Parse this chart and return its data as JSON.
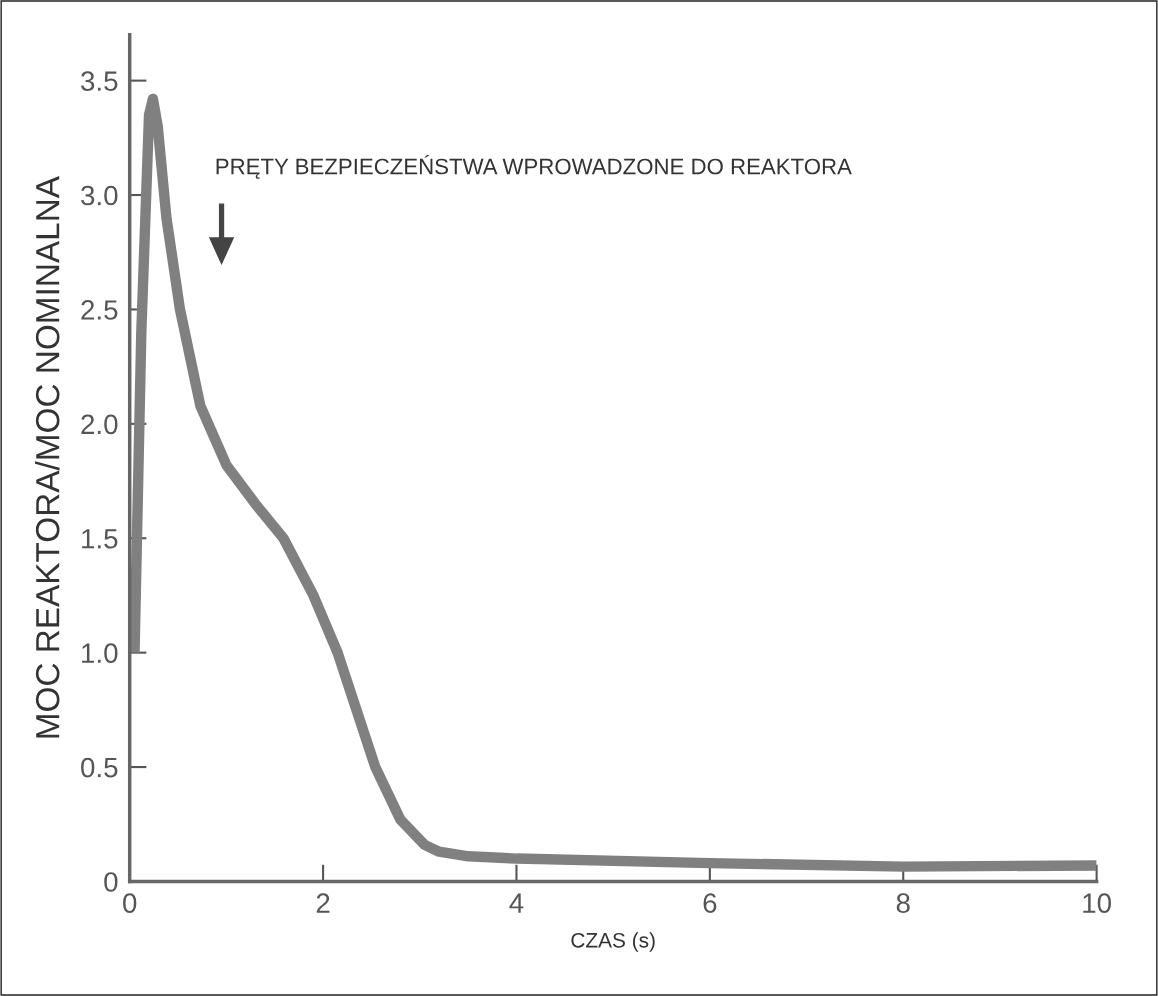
{
  "chart_data": {
    "type": "line",
    "xlabel": "CZAS (s)",
    "ylabel": "MOC REAKTORA/MOC NOMINALNA",
    "xlim": [
      0,
      10
    ],
    "ylim": [
      0,
      3.7
    ],
    "xticks": [
      0,
      2,
      4,
      6,
      8,
      10
    ],
    "yticks": [
      0,
      0.5,
      {
        "value": 1,
        "label": "1.0"
      },
      1.5,
      {
        "value": 2,
        "label": "2.0"
      },
      2.5,
      {
        "value": 3,
        "label": "3.0"
      },
      3.5
    ],
    "grid": false,
    "marker": "none",
    "line_style": "solid",
    "series": [
      {
        "color": "#808080",
        "x": [
          0.05,
          0.12,
          0.2,
          0.24,
          0.29,
          0.38,
          0.52,
          0.73,
          1.0,
          1.3,
          1.59,
          1.9,
          2.15,
          2.54,
          2.8,
          3.05,
          3.2,
          3.5,
          4.0,
          6.0,
          8.0,
          10.0
        ],
        "values": [
          1.0,
          2.4,
          3.35,
          3.42,
          3.3,
          2.9,
          2.5,
          2.08,
          1.82,
          1.65,
          1.5,
          1.25,
          1.0,
          0.5,
          0.27,
          0.16,
          0.13,
          0.11,
          0.1,
          0.08,
          0.065,
          0.07
        ]
      }
    ],
    "annotations": [
      "PRĘTY BEZPIECZEŃSTWA WPROWADZONE DO REAKTORA"
    ]
  }
}
